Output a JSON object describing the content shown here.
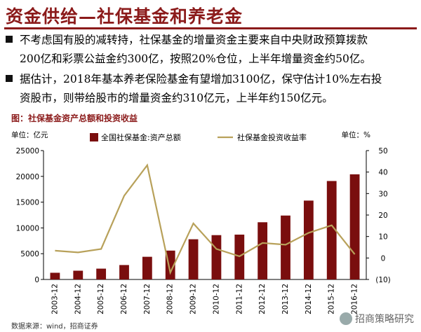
{
  "slide": {
    "title": "资金供给—社保基金和养老金",
    "bullets": [
      {
        "line1": "不考虑国有股的减转持，社保基金的增量资金主要来自中央财政预算拨款",
        "line2": "200亿和彩票公益金约300亿，按照20%仓位，上半年增量资金约50亿。"
      },
      {
        "line1": "据估计，2018年基本养老保险基金有望增加3100亿，保守估计10%左右投",
        "line2": "资股市，则带给股市的增量资金约310亿元，上半年约150亿元。"
      }
    ],
    "figure_title": "图：社保基金资产总额和投资收益",
    "source": "数据来源：wind，招商证券",
    "watermark": "招商策略研究"
  },
  "chart_data": {
    "type": "bar",
    "categories": [
      "2003-12",
      "2004-12",
      "2005-12",
      "2006-12",
      "2007-12",
      "2008-12",
      "2009-12",
      "2010-12",
      "2011-12",
      "2012-12",
      "2013-12",
      "2014-12",
      "2015-12",
      "2016-12"
    ],
    "series": [
      {
        "name": "全国社保基金:资产总额",
        "axis": "left",
        "kind": "bar",
        "color": "#7a0e0e",
        "values": [
          1300,
          1700,
          2100,
          2800,
          4400,
          5600,
          7800,
          8600,
          8700,
          11100,
          12400,
          15300,
          19100,
          20400
        ]
      },
      {
        "name": "社保基金投资收益率",
        "axis": "right",
        "kind": "line",
        "color": "#b8a15a",
        "values": [
          3.4,
          2.6,
          4.2,
          29.0,
          43.2,
          -6.8,
          16.1,
          4.2,
          0.8,
          7.0,
          6.2,
          11.7,
          15.2,
          1.7
        ]
      }
    ],
    "yleft": {
      "unit": "单位：亿元",
      "ylim": [
        0,
        25000
      ],
      "ticks": [
        "0",
        "5000",
        "10000",
        "15000",
        "20000",
        "25000"
      ]
    },
    "yright": {
      "unit": "单位：%",
      "ylim": [
        -10,
        50
      ],
      "ticks": [
        "(10)",
        "0",
        "10",
        "20",
        "30",
        "40",
        "50"
      ]
    },
    "legend_position": "top"
  }
}
